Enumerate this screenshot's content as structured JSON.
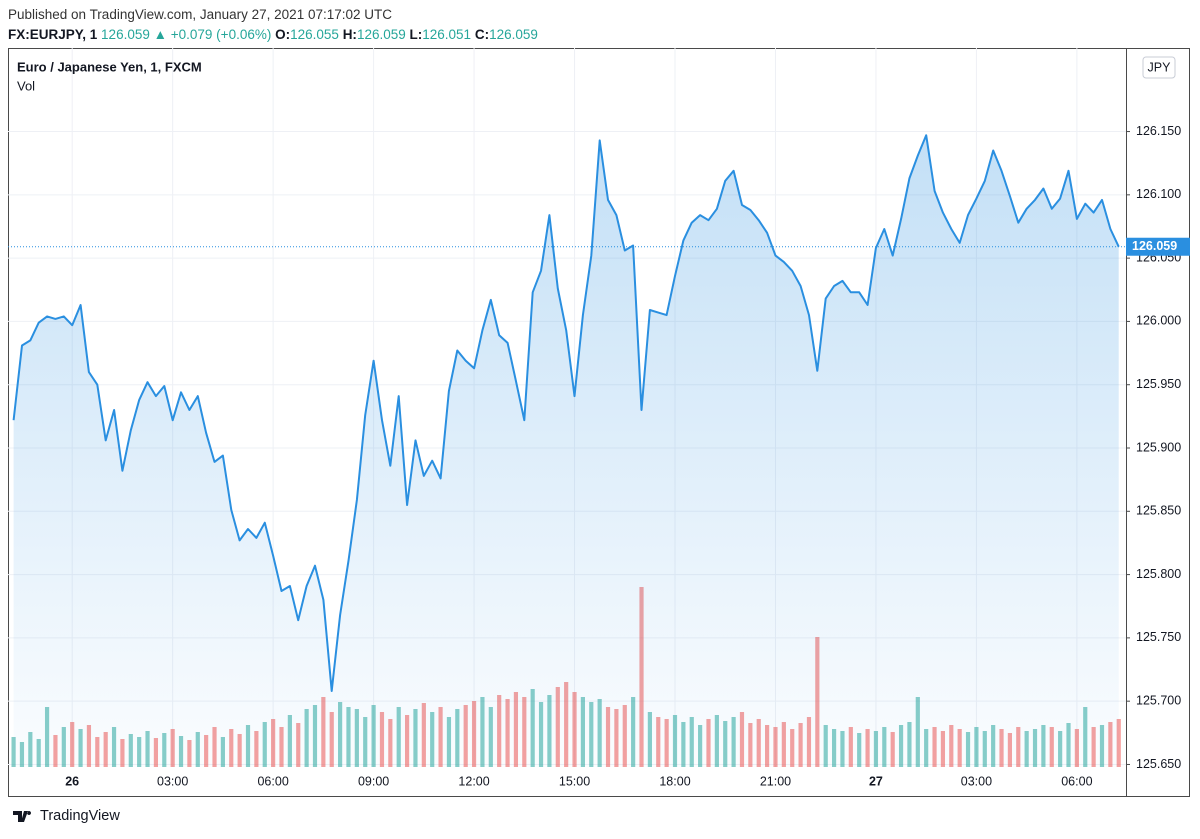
{
  "header": {
    "published": "Published on TradingView.com, January 27, 2021 07:17:02 UTC",
    "symbol": "FX:EURJPY, 1",
    "last": "126.059",
    "arrow": "▲",
    "change": "+0.079 (+0.06%)",
    "ohlc": [
      {
        "key": "O:",
        "value": "126.055"
      },
      {
        "key": "H:",
        "value": "126.059"
      },
      {
        "key": "L:",
        "value": "126.051"
      },
      {
        "key": "C:",
        "value": "126.059"
      }
    ]
  },
  "chart_data": {
    "type": "line",
    "currency": "JPY",
    "grid": true,
    "fill": true,
    "xlim": [
      "25 22:05",
      "27 07:28"
    ],
    "xticks": [
      {
        "value": "26 00:00",
        "label": "26"
      },
      {
        "value": "26 03:00",
        "label": "03:00"
      },
      {
        "value": "26 06:00",
        "label": "06:00"
      },
      {
        "value": "26 09:00",
        "label": "09:00"
      },
      {
        "value": "26 12:00",
        "label": "12:00"
      },
      {
        "value": "26 15:00",
        "label": "15:00"
      },
      {
        "value": "26 18:00",
        "label": "18:00"
      },
      {
        "value": "26 21:00",
        "label": "21:00"
      },
      {
        "value": "27 00:00",
        "label": "27"
      },
      {
        "value": "27 03:00",
        "label": "03:00"
      },
      {
        "value": "27 06:00",
        "label": "06:00"
      }
    ],
    "ylim": [
      125.648,
      126.216
    ],
    "yticks": [
      {
        "value": 125.65,
        "label": "125.650"
      },
      {
        "value": 125.7,
        "label": "125.700"
      },
      {
        "value": 125.75,
        "label": "125.750"
      },
      {
        "value": 125.8,
        "label": "125.800"
      },
      {
        "value": 125.85,
        "label": "125.850"
      },
      {
        "value": 125.9,
        "label": "125.900"
      },
      {
        "value": 125.95,
        "label": "125.950"
      },
      {
        "value": 126,
        "label": "126.000"
      },
      {
        "value": 126.05,
        "label": "126.050"
      },
      {
        "value": 126.1,
        "label": "126.100"
      },
      {
        "value": 126.15,
        "label": "126.150"
      }
    ],
    "x": [
      "25 22:15",
      "25 22:30",
      "25 22:45",
      "25 23:00",
      "25 23:15",
      "25 23:30",
      "25 23:45",
      "26 00:00",
      "26 00:15",
      "26 00:30",
      "26 00:45",
      "26 01:00",
      "26 01:15",
      "26 01:30",
      "26 01:45",
      "26 02:00",
      "26 02:15",
      "26 02:30",
      "26 02:45",
      "26 03:00",
      "26 03:15",
      "26 03:30",
      "26 03:45",
      "26 04:00",
      "26 04:15",
      "26 04:30",
      "26 04:45",
      "26 05:00",
      "26 05:15",
      "26 05:30",
      "26 05:45",
      "26 06:00",
      "26 06:15",
      "26 06:30",
      "26 06:45",
      "26 07:00",
      "26 07:15",
      "26 07:30",
      "26 07:45",
      "26 08:00",
      "26 08:15",
      "26 08:30",
      "26 08:45",
      "26 09:00",
      "26 09:15",
      "26 09:30",
      "26 09:45",
      "26 10:00",
      "26 10:15",
      "26 10:30",
      "26 10:45",
      "26 11:00",
      "26 11:15",
      "26 11:30",
      "26 11:45",
      "26 12:00",
      "26 12:15",
      "26 12:30",
      "26 12:45",
      "26 13:00",
      "26 13:15",
      "26 13:30",
      "26 13:45",
      "26 14:00",
      "26 14:15",
      "26 14:30",
      "26 14:45",
      "26 15:00",
      "26 15:15",
      "26 15:30",
      "26 15:45",
      "26 16:00",
      "26 16:15",
      "26 16:30",
      "26 16:45",
      "26 17:00",
      "26 17:15",
      "26 17:30",
      "26 17:45",
      "26 18:00",
      "26 18:15",
      "26 18:30",
      "26 18:45",
      "26 19:00",
      "26 19:15",
      "26 19:30",
      "26 19:45",
      "26 20:00",
      "26 20:15",
      "26 20:30",
      "26 20:45",
      "26 21:00",
      "26 21:15",
      "26 21:30",
      "26 21:45",
      "26 22:00",
      "26 22:15",
      "26 22:30",
      "26 22:45",
      "26 23:00",
      "26 23:15",
      "26 23:30",
      "26 23:45",
      "27 00:00",
      "27 00:15",
      "27 00:30",
      "27 00:45",
      "27 01:00",
      "27 01:15",
      "27 01:30",
      "27 01:45",
      "27 02:00",
      "27 02:15",
      "27 02:30",
      "27 02:45",
      "27 03:00",
      "27 03:15",
      "27 03:30",
      "27 03:45",
      "27 04:00",
      "27 04:15",
      "27 04:30",
      "27 04:45",
      "27 05:00",
      "27 05:15",
      "27 05:30",
      "27 05:45",
      "27 06:00",
      "27 06:15",
      "27 06:30",
      "27 06:45",
      "27 07:00",
      "27 07:15"
    ],
    "series": [
      {
        "name": "Euro / Japanese Yen, 1, FXCM",
        "color": "#2a8fe0",
        "values": [
          125.922,
          125.981,
          125.985,
          125.999,
          126.004,
          126.002,
          126.004,
          125.997,
          126.013,
          125.96,
          125.95,
          125.906,
          125.93,
          125.882,
          125.914,
          125.938,
          125.952,
          125.941,
          125.949,
          125.922,
          125.944,
          125.93,
          125.941,
          125.912,
          125.889,
          125.894,
          125.851,
          125.827,
          125.836,
          125.829,
          125.841,
          125.815,
          125.787,
          125.791,
          125.764,
          125.791,
          125.807,
          125.78,
          125.708,
          125.768,
          125.811,
          125.859,
          125.926,
          125.969,
          125.922,
          125.886,
          125.941,
          125.855,
          125.906,
          125.878,
          125.89,
          125.876,
          125.945,
          125.977,
          125.969,
          125.963,
          125.993,
          126.017,
          125.989,
          125.983,
          125.953,
          125.922,
          126.023,
          126.04,
          126.084,
          126.026,
          125.993,
          125.941,
          126.005,
          126.052,
          126.143,
          126.096,
          126.084,
          126.056,
          126.06,
          125.93,
          126.009,
          126.007,
          126.005,
          126.036,
          126.064,
          126.078,
          126.084,
          126.08,
          126.089,
          126.111,
          126.119,
          126.092,
          126.088,
          126.08,
          126.07,
          126.052,
          126.047,
          126.04,
          126.028,
          126.005,
          125.961,
          126.018,
          126.028,
          126.032,
          126.023,
          126.023,
          126.013,
          126.058,
          126.073,
          126.052,
          126.081,
          126.113,
          126.131,
          126.147,
          126.103,
          126.086,
          126.073,
          126.062,
          126.084,
          126.097,
          126.111,
          126.135,
          126.119,
          126.099,
          126.078,
          126.089,
          126.096,
          126.105,
          126.089,
          126.097,
          126.119,
          126.081,
          126.093,
          126.086,
          126.096,
          126.073,
          126.059
        ]
      }
    ],
    "volume": {
      "name": "Vol",
      "up_color": "#26a69a",
      "down_color": "#ef5350",
      "values": [
        30,
        25,
        35,
        28,
        60,
        32,
        40,
        45,
        38,
        42,
        30,
        35,
        40,
        28,
        33,
        30,
        36,
        29,
        34,
        38,
        31,
        27,
        35,
        32,
        40,
        30,
        38,
        33,
        42,
        36,
        45,
        48,
        40,
        52,
        44,
        58,
        62,
        70,
        55,
        65,
        60,
        58,
        50,
        62,
        55,
        48,
        60,
        52,
        58,
        64,
        55,
        60,
        50,
        58,
        62,
        66,
        70,
        60,
        72,
        68,
        75,
        70,
        78,
        65,
        72,
        80,
        85,
        75,
        70,
        65,
        68,
        60,
        58,
        62,
        70,
        180,
        55,
        50,
        48,
        52,
        45,
        50,
        42,
        48,
        52,
        46,
        50,
        55,
        44,
        48,
        42,
        40,
        45,
        38,
        44,
        50,
        130,
        42,
        38,
        36,
        40,
        34,
        38,
        36,
        40,
        35,
        42,
        45,
        70,
        38,
        40,
        36,
        42,
        38,
        35,
        40,
        36,
        42,
        38,
        34,
        40,
        36,
        38,
        42,
        40,
        36,
        44,
        38,
        60,
        40,
        42,
        45,
        48
      ]
    }
  },
  "footer": {
    "brand": "TradingView"
  }
}
